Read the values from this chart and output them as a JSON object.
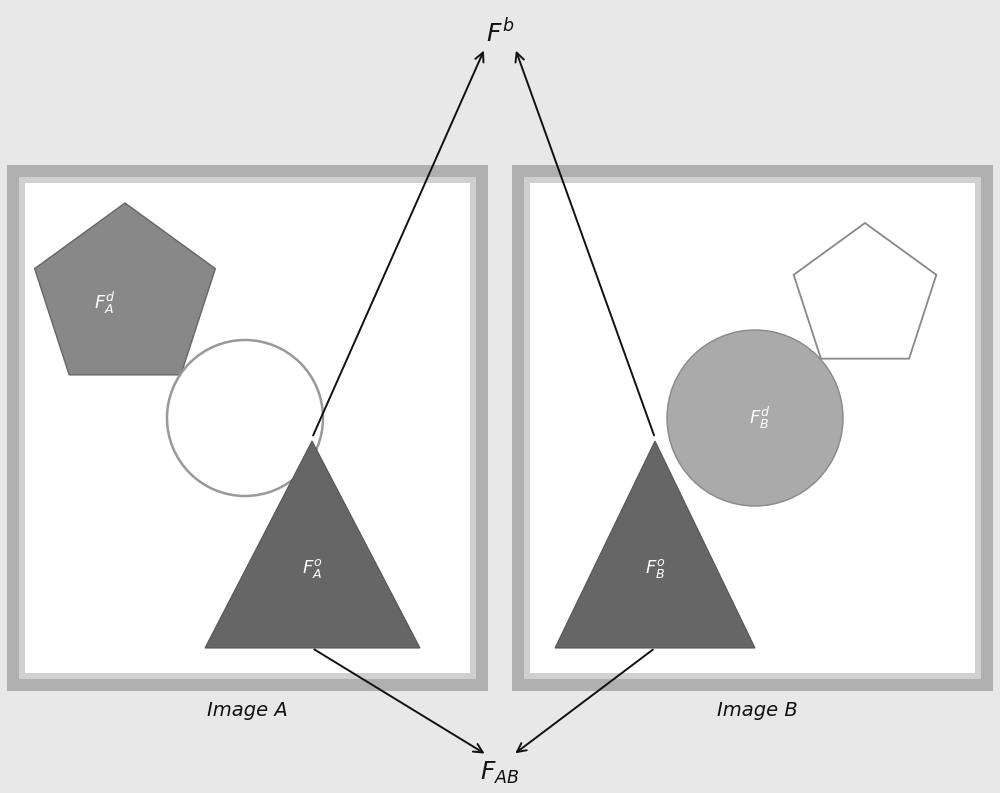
{
  "bg_color": "#e8e8e8",
  "box_border_outer": "#b0b0b0",
  "box_border_inner": "#d0d0d0",
  "box_bg": "#ffffff",
  "pentagon_A_color": "#888888",
  "pentagon_A_edge": "#666666",
  "triangle_color": "#666666",
  "triangle_edge": "#555555",
  "circle_A_face": "#ffffff",
  "circle_A_edge": "#999999",
  "circle_B_color": "#aaaaaa",
  "circle_B_edge": "#888888",
  "pentagon_B_face": "#ffffff",
  "pentagon_B_edge": "#888888",
  "arrow_color": "#111111",
  "text_color": "#111111",
  "label_A": "Image A",
  "label_B": "Image B",
  "figw": 10.0,
  "figh": 7.93
}
